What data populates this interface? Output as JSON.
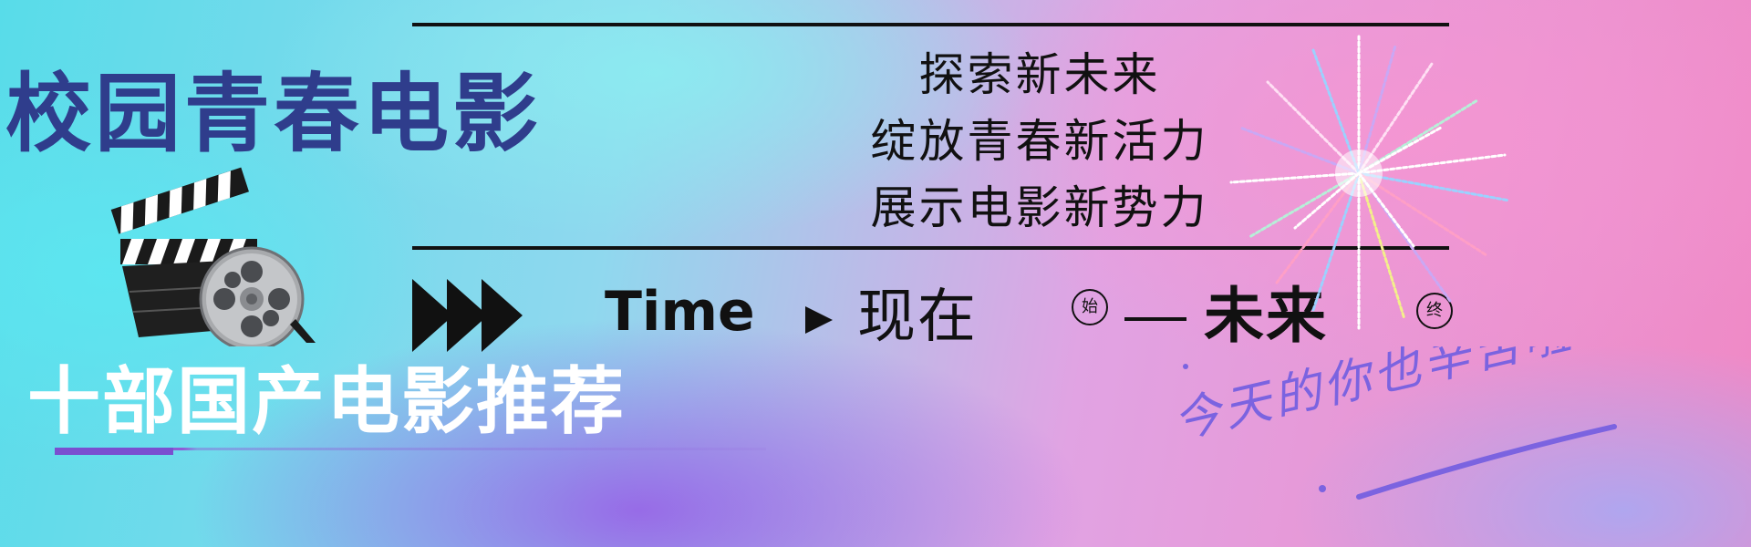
{
  "banner": {
    "main_title": "校园青春电影",
    "slogan_lines": [
      "探索新未来",
      "绽放青春新活力",
      "展示电影新势力"
    ],
    "time": {
      "label": "Time",
      "now": "现在",
      "start_marker": "始",
      "future": "未来",
      "end_marker": "终"
    },
    "sub_title": "十部国产电影推荐",
    "script_text": "今天的你也辛苦啦"
  },
  "icons": {
    "clapperboard": "clapperboard-icon",
    "film_reel": "film-reel-icon",
    "triple_arrow": "triple-triangle-icon",
    "play": "play-icon",
    "fireworks": "fireworks-decoration"
  },
  "colors": {
    "title": "#2f3d8c",
    "text": "#111111",
    "subtitle": "#ffffff",
    "accent": "#7b63e0"
  }
}
